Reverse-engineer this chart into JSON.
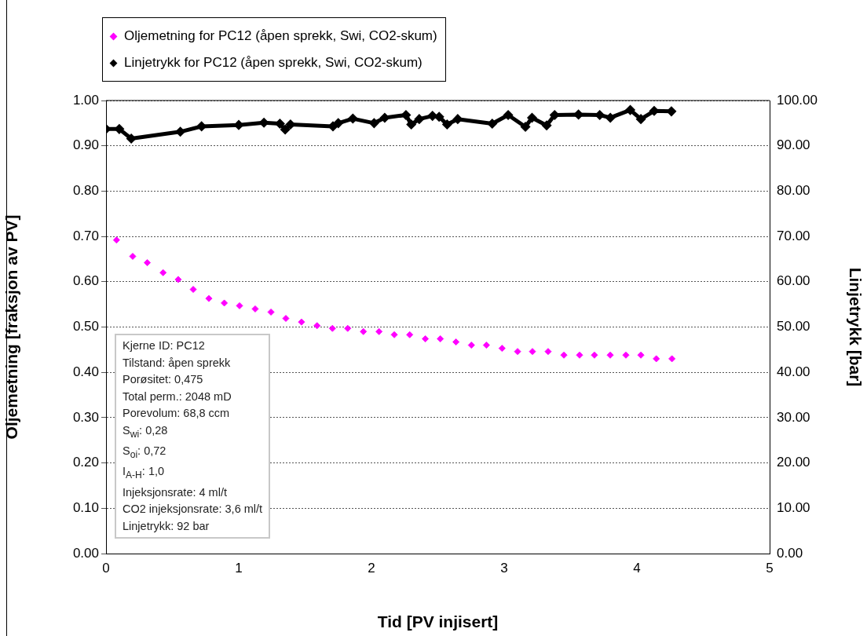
{
  "chart_data": {
    "type": "scatter",
    "xlabel": "Tid [PV injisert]",
    "ylabel": "Oljemetning [fraksjon av PV]",
    "y2label": "Linjetrykk [bar]",
    "series": [
      {
        "name": "Oljemetning for PC12 (åpen sprekk, Swi, CO2-skum)",
        "color": "#ff00ff",
        "x": [
          0.079,
          0.201,
          0.311,
          0.43,
          0.544,
          0.657,
          0.775,
          0.891,
          1.006,
          1.124,
          1.243,
          1.355,
          1.473,
          1.59,
          1.706,
          1.821,
          1.939,
          2.057,
          2.172,
          2.288,
          2.406,
          2.519,
          2.637,
          2.753,
          2.866,
          2.984,
          3.101,
          3.213,
          3.331,
          3.45,
          3.568,
          3.68,
          3.799,
          3.917,
          4.03,
          4.146,
          4.264
        ],
        "values": [
          0.692,
          0.656,
          0.642,
          0.62,
          0.605,
          0.583,
          0.563,
          0.553,
          0.547,
          0.54,
          0.533,
          0.519,
          0.511,
          0.503,
          0.497,
          0.497,
          0.49,
          0.49,
          0.483,
          0.483,
          0.474,
          0.474,
          0.467,
          0.46,
          0.46,
          0.453,
          0.446,
          0.446,
          0.446,
          0.438,
          0.438,
          0.438,
          0.438,
          0.438,
          0.438,
          0.43,
          0.43
        ]
      },
      {
        "name": "Linjetrykk for PC12 (åpen sprekk, Swi, CO2-skum)",
        "color": "#000000",
        "type": "line",
        "axis": "y2",
        "x": [
          0,
          0.1,
          0.19,
          0.56,
          0.72,
          1.0,
          1.19,
          1.31,
          1.35,
          1.39,
          1.71,
          1.75,
          1.86,
          2.02,
          2.1,
          2.26,
          2.3,
          2.36,
          2.46,
          2.51,
          2.57,
          2.65,
          2.91,
          3.03,
          3.16,
          3.21,
          3.32,
          3.38,
          3.56,
          3.72,
          3.8,
          3.95,
          4.03,
          4.13,
          4.26
        ],
        "values": [
          93.7,
          93.7,
          91.6,
          93.1,
          94.3,
          94.6,
          95.1,
          94.9,
          93.6,
          94.7,
          94.3,
          95.0,
          96.0,
          95.0,
          96.2,
          96.8,
          94.7,
          95.9,
          96.6,
          96.4,
          94.7,
          95.9,
          94.9,
          96.8,
          94.2,
          96.2,
          94.5,
          96.8,
          96.9,
          96.8,
          96.2,
          97.9,
          95.9,
          97.7,
          97.6
        ]
      }
    ],
    "marker": "diamond",
    "grid": "y",
    "legend": "top left",
    "xlim": [
      0,
      5
    ],
    "xticks": [
      0,
      1,
      2,
      3,
      4,
      5
    ],
    "ylim": [
      0,
      1
    ],
    "yticks": [
      {
        "value": 0,
        "label": "0.00"
      },
      {
        "value": 0.1,
        "label": "0.10"
      },
      {
        "value": 0.2,
        "label": "0.20"
      },
      {
        "value": 0.3,
        "label": "0.30"
      },
      {
        "value": 0.4,
        "label": "0.40"
      },
      {
        "value": 0.5,
        "label": "0.50"
      },
      {
        "value": 0.6,
        "label": "0.60"
      },
      {
        "value": 0.7,
        "label": "0.70"
      },
      {
        "value": 0.8,
        "label": "0.80"
      },
      {
        "value": 0.9,
        "label": "0.90"
      },
      {
        "value": 1,
        "label": "1.00"
      }
    ],
    "y2lim": [
      0,
      100
    ],
    "y2ticks": [
      {
        "value": 0,
        "label": "0.00"
      },
      {
        "value": 10,
        "label": "10.00"
      },
      {
        "value": 20,
        "label": "20.00"
      },
      {
        "value": 30,
        "label": "30.00"
      },
      {
        "value": 40,
        "label": "40.00"
      },
      {
        "value": 50,
        "label": "50.00"
      },
      {
        "value": 60,
        "label": "60.00"
      },
      {
        "value": 70,
        "label": "70.00"
      },
      {
        "value": 80,
        "label": "80.00"
      },
      {
        "value": 90,
        "label": "90.00"
      },
      {
        "value": 100,
        "label": "100.00"
      }
    ],
    "annotations": [
      "Kjerne ID: PC12",
      "Tilstand: åpen sprekk",
      "Porøsitet: 0,475",
      "Total perm.: 2048 mD",
      "Porevolum: 68,8 ccm",
      "S$_{wi}$: 0,28",
      "S$_{oi}$: 0,72",
      "I$_{A-H}$: 1,0",
      "Injeksjonsrate: 4 ml/t",
      "CO2 injeksjonsrate: 3,6 ml/t",
      "Linjetrykk: 92 bar"
    ]
  }
}
